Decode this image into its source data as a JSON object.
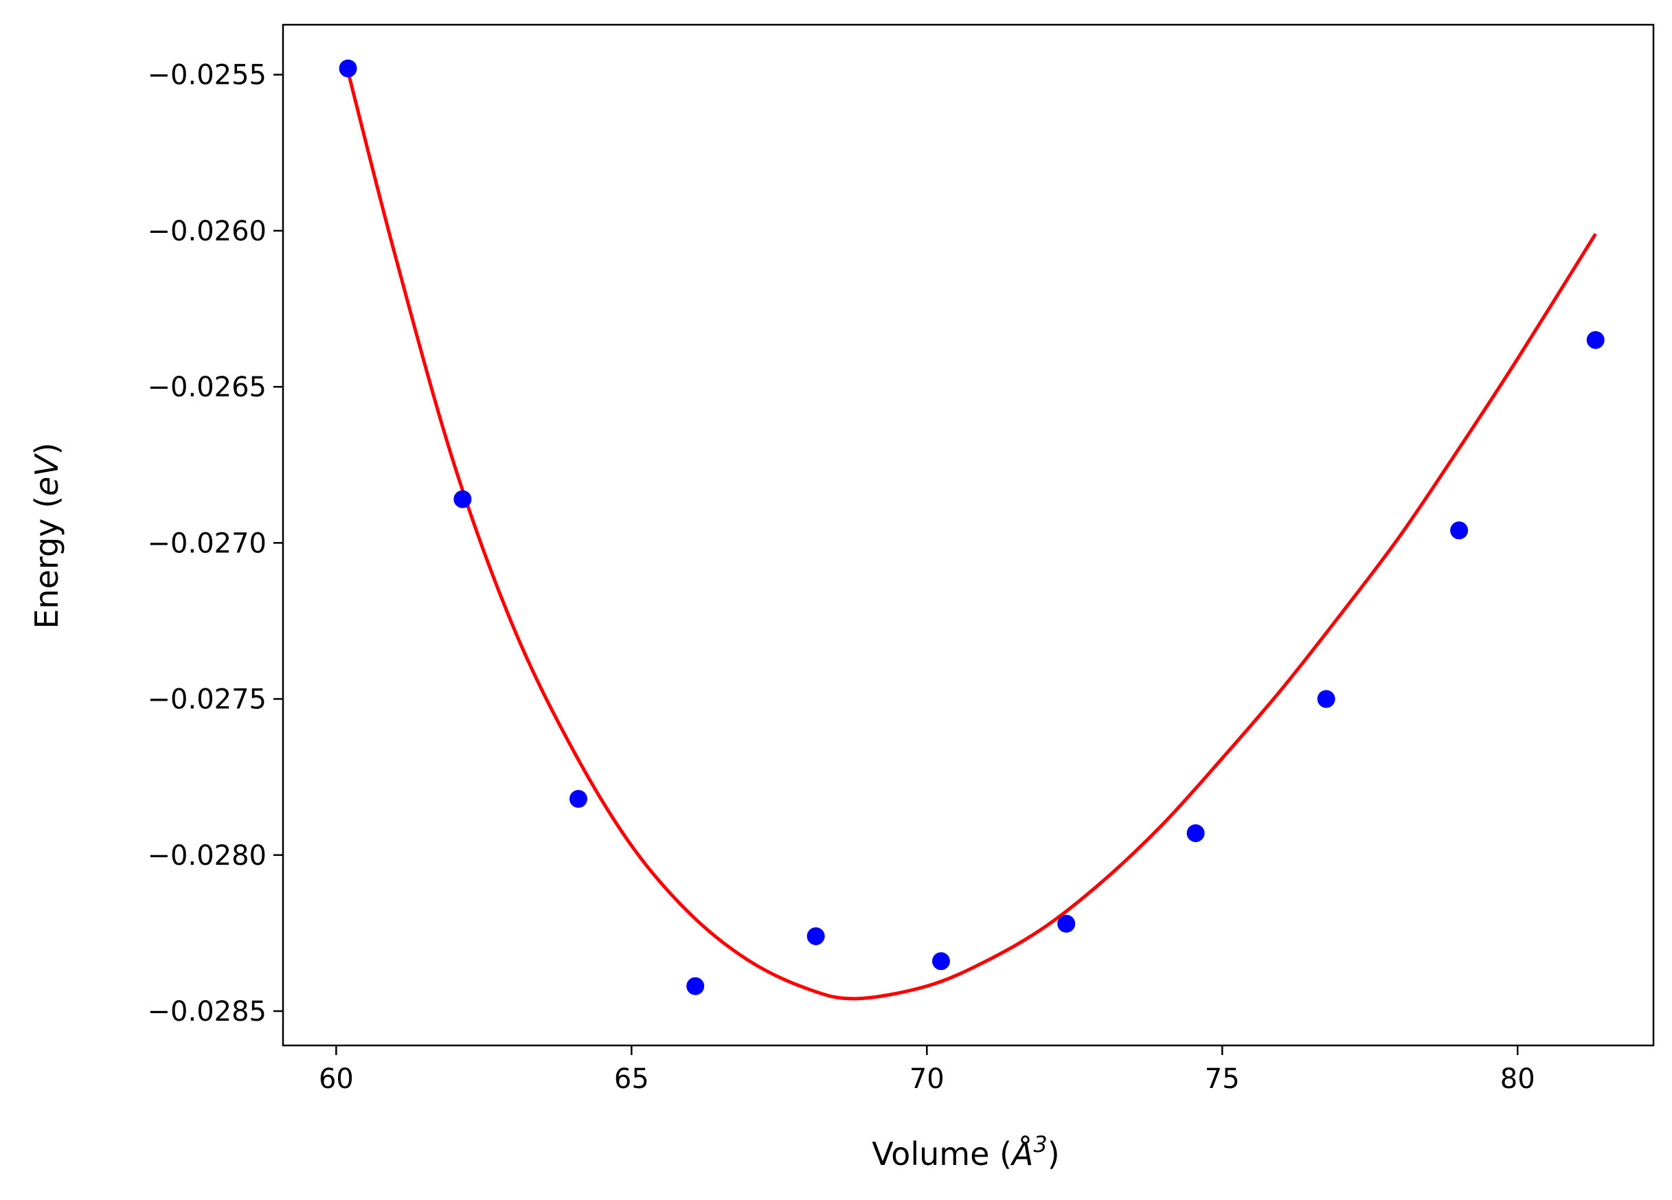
{
  "chart_data": {
    "type": "scatter",
    "title": "",
    "xlabel": "Volume (",
    "xlabel_symbol": "Å",
    "xlabel_exponent": "3",
    "xlabel_close": ")",
    "ylabel": "Energy (",
    "ylabel_unit": "eV",
    "ylabel_close": ")",
    "xlim": [
      59.1,
      82.3
    ],
    "ylim": [
      -0.02861,
      -0.02534
    ],
    "x_ticks": [
      60,
      65,
      70,
      75,
      80
    ],
    "x_tick_labels": [
      "60",
      "65",
      "70",
      "75",
      "80"
    ],
    "y_ticks": [
      -0.0255,
      -0.026,
      -0.0265,
      -0.027,
      -0.0275,
      -0.028,
      -0.0285
    ],
    "y_tick_labels": [
      "−0.0255",
      "−0.0260",
      "−0.0265",
      "−0.0270",
      "−0.0275",
      "−0.0280",
      "−0.0285"
    ],
    "grid": false,
    "legend": false,
    "series": [
      {
        "kind": "points",
        "color": "#0000ff",
        "x": [
          60.2,
          62.14,
          64.1,
          66.08,
          68.12,
          70.24,
          72.36,
          74.55,
          76.76,
          79.01,
          81.32
        ],
        "y": [
          -0.02548,
          -0.02686,
          -0.02782,
          -0.02842,
          -0.02826,
          -0.02834,
          -0.02822,
          -0.02793,
          -0.0275,
          -0.02696,
          -0.02635
        ]
      },
      {
        "kind": "fit-line",
        "color": "#ff0000",
        "x": [
          60.2,
          61.0,
          62.0,
          63.0,
          64.0,
          65.0,
          66.0,
          67.0,
          68.0,
          68.8,
          70.0,
          71.0,
          72.0,
          73.0,
          74.0,
          75.0,
          76.0,
          77.0,
          78.0,
          79.0,
          80.0,
          81.32
        ],
        "y": [
          -0.02549,
          -0.02608,
          -0.02675,
          -0.02727,
          -0.02766,
          -0.02797,
          -0.02819,
          -0.02834,
          -0.02843,
          -0.02846,
          -0.02842,
          -0.02834,
          -0.02823,
          -0.02808,
          -0.0279,
          -0.02769,
          -0.02747,
          -0.02723,
          -0.02698,
          -0.0267,
          -0.02641,
          -0.02601
        ]
      }
    ]
  }
}
